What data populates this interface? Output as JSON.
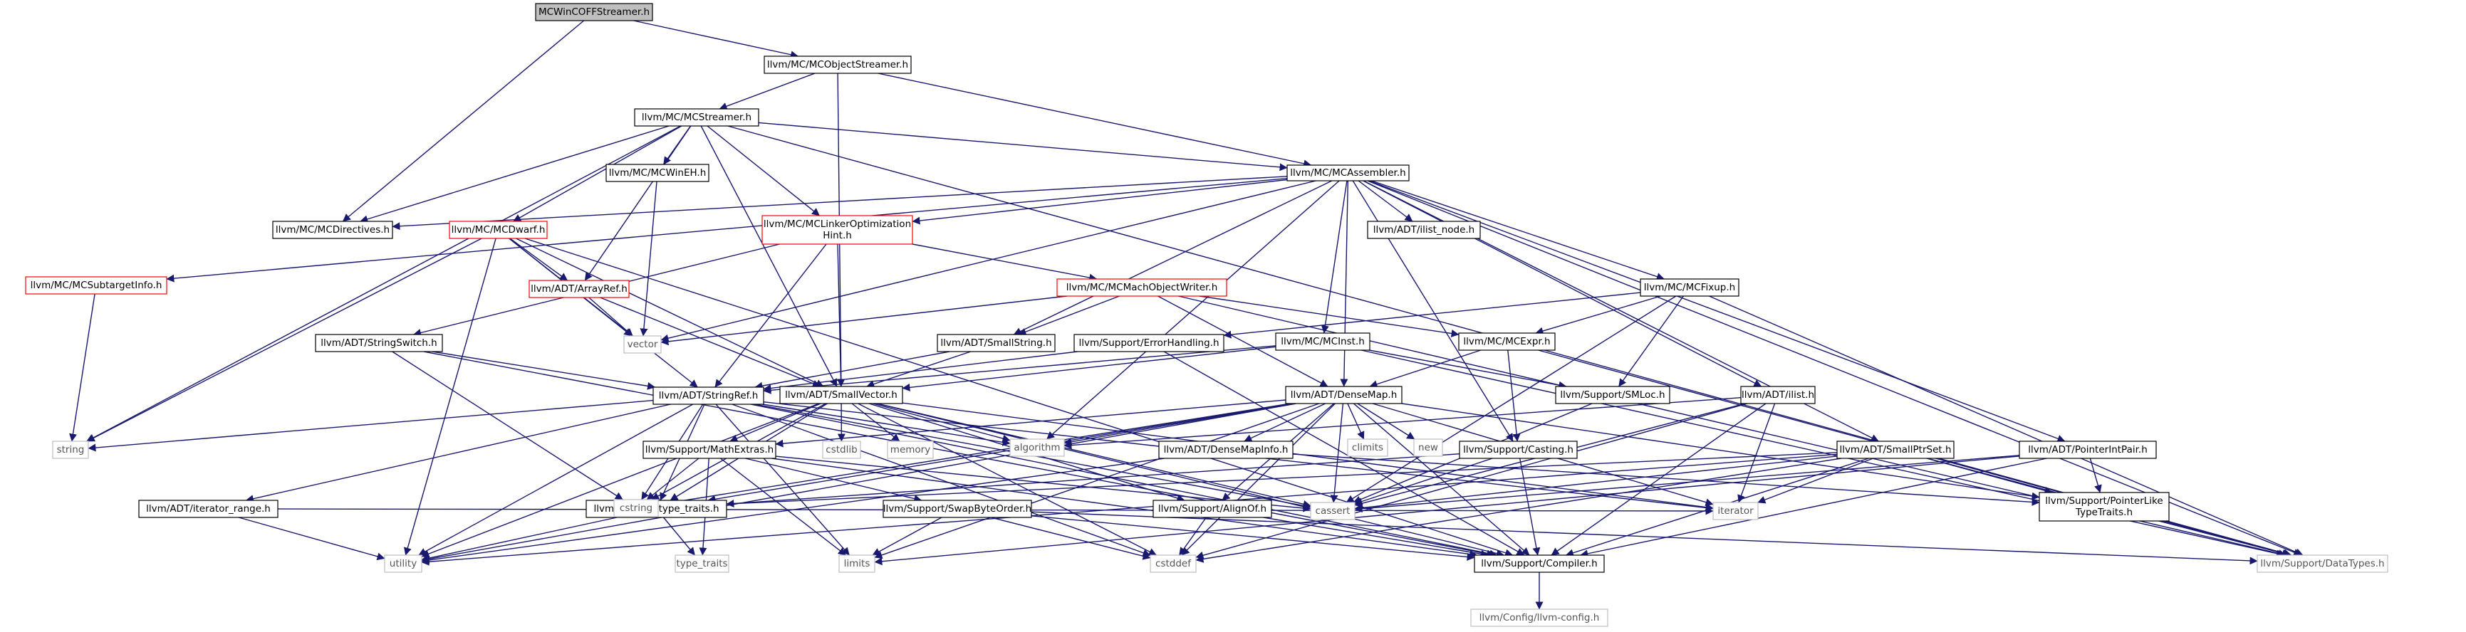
{
  "colors": {
    "edge": "#191970",
    "node_border": "#000000",
    "node_text": "#000000",
    "node_fill": "#ffffff",
    "root_fill": "#bfbfbf",
    "truncated_border": "#ff0000",
    "system_border": "#bfbfbf",
    "system_text": "#555555"
  },
  "nodes": [
    {
      "id": "root",
      "label": "MCWinCOFFStreamer.h",
      "kind": "root"
    },
    {
      "id": "mcobjectstreamer",
      "label": "llvm/MC/MCObjectStreamer.h",
      "kind": "normal"
    },
    {
      "id": "mcstreamer",
      "label": "llvm/MC/MCStreamer.h",
      "kind": "normal"
    },
    {
      "id": "mcassembler",
      "label": "llvm/MC/MCAssembler.h",
      "kind": "normal"
    },
    {
      "id": "mcwineh",
      "label": "llvm/MC/MCWinEH.h",
      "kind": "normal"
    },
    {
      "id": "mcdirectives",
      "label": "llvm/MC/MCDirectives.h",
      "kind": "normal"
    },
    {
      "id": "mcdwarf",
      "label": "llvm/MC/MCDwarf.h",
      "kind": "truncated"
    },
    {
      "id": "mclinker",
      "label": "llvm/MC/MCLinkerOptimization\nHint.h",
      "kind": "truncated"
    },
    {
      "id": "ilistnode",
      "label": "llvm/ADT/ilist_node.h",
      "kind": "normal"
    },
    {
      "id": "mcsubtarget",
      "label": "llvm/MC/MCSubtargetInfo.h",
      "kind": "truncated"
    },
    {
      "id": "arrayref",
      "label": "llvm/ADT/ArrayRef.h",
      "kind": "truncated"
    },
    {
      "id": "mcmacho",
      "label": "llvm/MC/MCMachObjectWriter.h",
      "kind": "truncated"
    },
    {
      "id": "mcfixup",
      "label": "llvm/MC/MCFixup.h",
      "kind": "normal"
    },
    {
      "id": "stringswitch",
      "label": "llvm/ADT/StringSwitch.h",
      "kind": "normal"
    },
    {
      "id": "smallstring",
      "label": "llvm/ADT/SmallString.h",
      "kind": "normal"
    },
    {
      "id": "errorhandling",
      "label": "llvm/Support/ErrorHandling.h",
      "kind": "normal"
    },
    {
      "id": "mcinst",
      "label": "llvm/MC/MCInst.h",
      "kind": "normal"
    },
    {
      "id": "mcexpr",
      "label": "llvm/MC/MCExpr.h",
      "kind": "normal"
    },
    {
      "id": "stringref",
      "label": "llvm/ADT/StringRef.h",
      "kind": "normal"
    },
    {
      "id": "smallvector",
      "label": "llvm/ADT/SmallVector.h",
      "kind": "normal"
    },
    {
      "id": "densemap",
      "label": "llvm/ADT/DenseMap.h",
      "kind": "normal"
    },
    {
      "id": "smloc",
      "label": "llvm/Support/SMLoc.h",
      "kind": "normal"
    },
    {
      "id": "ilist",
      "label": "llvm/ADT/ilist.h",
      "kind": "normal"
    },
    {
      "id": "mathextras",
      "label": "llvm/Support/MathExtras.h",
      "kind": "normal"
    },
    {
      "id": "densemapinfo",
      "label": "llvm/ADT/DenseMapInfo.h",
      "kind": "normal"
    },
    {
      "id": "casting",
      "label": "llvm/Support/Casting.h",
      "kind": "normal"
    },
    {
      "id": "smallptrset",
      "label": "llvm/ADT/SmallPtrSet.h",
      "kind": "normal"
    },
    {
      "id": "pointerintpair",
      "label": "llvm/ADT/PointerIntPair.h",
      "kind": "normal"
    },
    {
      "id": "iterrange",
      "label": "llvm/ADT/iterator_range.h",
      "kind": "normal"
    },
    {
      "id": "typetraitsh",
      "label": "llvm/Support/type_traits.h",
      "kind": "normal"
    },
    {
      "id": "swapbyte",
      "label": "llvm/Support/SwapByteOrder.h",
      "kind": "normal"
    },
    {
      "id": "alignof",
      "label": "llvm/Support/AlignOf.h",
      "kind": "normal"
    },
    {
      "id": "ptrlike",
      "label": "llvm/Support/PointerLike\nTypeTraits.h",
      "kind": "normal"
    },
    {
      "id": "compiler",
      "label": "llvm/Support/Compiler.h",
      "kind": "normal"
    },
    {
      "id": "datatypes",
      "label": "llvm/Support/DataTypes.h",
      "kind": "system"
    },
    {
      "id": "llvmconfig",
      "label": "llvm/Config/llvm-config.h",
      "kind": "system"
    },
    {
      "id": "vector",
      "label": "vector",
      "kind": "system"
    },
    {
      "id": "string",
      "label": "string",
      "kind": "system"
    },
    {
      "id": "cstdlib",
      "label": "cstdlib",
      "kind": "system"
    },
    {
      "id": "memory",
      "label": "memory",
      "kind": "system"
    },
    {
      "id": "algorithm",
      "label": "algorithm",
      "kind": "system"
    },
    {
      "id": "climits",
      "label": "climits",
      "kind": "system"
    },
    {
      "id": "new",
      "label": "new",
      "kind": "system"
    },
    {
      "id": "cstring",
      "label": "cstring",
      "kind": "system"
    },
    {
      "id": "cassert",
      "label": "cassert",
      "kind": "system"
    },
    {
      "id": "iterator",
      "label": "iterator",
      "kind": "system"
    },
    {
      "id": "utility",
      "label": "utility",
      "kind": "system"
    },
    {
      "id": "limits",
      "label": "limits",
      "kind": "system"
    },
    {
      "id": "typetraits",
      "label": "type_traits",
      "kind": "system"
    },
    {
      "id": "cstddef",
      "label": "cstddef",
      "kind": "system"
    }
  ],
  "edges": [
    [
      "root",
      "mcobjectstreamer"
    ],
    [
      "root",
      "mcdirectives"
    ],
    [
      "mcobjectstreamer",
      "mcstreamer"
    ],
    [
      "mcobjectstreamer",
      "mcassembler"
    ],
    [
      "mcobjectstreamer",
      "smallvector"
    ],
    [
      "mcstreamer",
      "mcassembler"
    ],
    [
      "mcstreamer",
      "mcwineh"
    ],
    [
      "mcstreamer",
      "mcdirectives"
    ],
    [
      "mcstreamer",
      "mcdwarf"
    ],
    [
      "mcstreamer",
      "mclinker"
    ],
    [
      "mcstreamer",
      "arrayref"
    ],
    [
      "mcstreamer",
      "smallvector"
    ],
    [
      "mcstreamer",
      "string"
    ],
    [
      "mcstreamer",
      "datatypes"
    ],
    [
      "mcassembler",
      "mcdirectives"
    ],
    [
      "mcassembler",
      "mclinker"
    ],
    [
      "mcassembler",
      "ilistnode"
    ],
    [
      "mcassembler",
      "mcsubtarget"
    ],
    [
      "mcassembler",
      "mcfixup"
    ],
    [
      "mcassembler",
      "smallstring"
    ],
    [
      "mcassembler",
      "mcinst"
    ],
    [
      "mcassembler",
      "densemap"
    ],
    [
      "mcassembler",
      "ilist"
    ],
    [
      "mcassembler",
      "casting"
    ],
    [
      "mcassembler",
      "smallptrset"
    ],
    [
      "mcassembler",
      "pointerintpair"
    ],
    [
      "mcassembler",
      "vector"
    ],
    [
      "mcassembler",
      "algorithm"
    ],
    [
      "mcassembler",
      "datatypes"
    ],
    [
      "mcwineh",
      "vector"
    ],
    [
      "mcdwarf",
      "arrayref"
    ],
    [
      "mcdwarf",
      "stringref"
    ],
    [
      "mcdwarf",
      "smallvector"
    ],
    [
      "mcdwarf",
      "vector"
    ],
    [
      "mcdwarf",
      "string"
    ],
    [
      "mcdwarf",
      "utility"
    ],
    [
      "mcdwarf",
      "compiler"
    ],
    [
      "mclinker",
      "stringswitch"
    ],
    [
      "mclinker",
      "mcmacho"
    ],
    [
      "mclinker",
      "stringref"
    ],
    [
      "mclinker",
      "smallvector"
    ],
    [
      "mcsubtarget",
      "string"
    ],
    [
      "arrayref",
      "smallvector"
    ],
    [
      "arrayref",
      "vector"
    ],
    [
      "mcmacho",
      "mcexpr"
    ],
    [
      "mcmacho",
      "densemap"
    ],
    [
      "mcmacho",
      "smallstring"
    ],
    [
      "mcmacho",
      "vector"
    ],
    [
      "mcmacho",
      "datatypes"
    ],
    [
      "mcfixup",
      "mcexpr"
    ],
    [
      "mcfixup",
      "errorhandling"
    ],
    [
      "mcfixup",
      "smloc"
    ],
    [
      "mcfixup",
      "cassert"
    ],
    [
      "mcfixup",
      "datatypes"
    ],
    [
      "stringswitch",
      "stringref"
    ],
    [
      "stringswitch",
      "compiler"
    ],
    [
      "stringswitch",
      "cstring"
    ],
    [
      "smallstring",
      "smallvector"
    ],
    [
      "smallstring",
      "stringref"
    ],
    [
      "errorhandling",
      "stringref"
    ],
    [
      "errorhandling",
      "compiler"
    ],
    [
      "mcinst",
      "smallvector"
    ],
    [
      "mcinst",
      "stringref"
    ],
    [
      "mcinst",
      "smloc"
    ],
    [
      "mcinst",
      "datatypes"
    ],
    [
      "mcexpr",
      "densemap"
    ],
    [
      "mcexpr",
      "casting"
    ],
    [
      "mcexpr",
      "datatypes"
    ],
    [
      "stringref",
      "string"
    ],
    [
      "stringref",
      "algorithm"
    ],
    [
      "stringref",
      "cstring"
    ],
    [
      "stringref",
      "limits"
    ],
    [
      "stringref",
      "utility"
    ],
    [
      "stringref",
      "iterrange"
    ],
    [
      "stringref",
      "typetraitsh"
    ],
    [
      "stringref",
      "cassert"
    ],
    [
      "stringref",
      "cstddef"
    ],
    [
      "stringref",
      "compiler"
    ],
    [
      "stringref",
      "iterator"
    ],
    [
      "smallvector",
      "mathextras"
    ],
    [
      "smallvector",
      "alignof"
    ],
    [
      "smallvector",
      "typetraitsh"
    ],
    [
      "smallvector",
      "algorithm"
    ],
    [
      "smallvector",
      "cstdlib"
    ],
    [
      "smallvector",
      "memory"
    ],
    [
      "smallvector",
      "cassert"
    ],
    [
      "smallvector",
      "cstddef"
    ],
    [
      "smallvector",
      "compiler"
    ],
    [
      "smallvector",
      "iterator"
    ],
    [
      "smallvector",
      "utility"
    ],
    [
      "smallvector",
      "cstring"
    ],
    [
      "densemap",
      "densemapinfo"
    ],
    [
      "densemap",
      "mathextras"
    ],
    [
      "densemap",
      "alignof"
    ],
    [
      "densemap",
      "typetraitsh"
    ],
    [
      "densemap",
      "ptrlike"
    ],
    [
      "densemap",
      "compiler"
    ],
    [
      "densemap",
      "algorithm"
    ],
    [
      "densemap",
      "cassert"
    ],
    [
      "densemap",
      "climits"
    ],
    [
      "densemap",
      "new"
    ],
    [
      "densemap",
      "iterator"
    ],
    [
      "densemap",
      "utility"
    ],
    [
      "densemap",
      "cstring"
    ],
    [
      "densemap",
      "limits"
    ],
    [
      "densemap",
      "cstddef"
    ],
    [
      "smloc",
      "cassert"
    ],
    [
      "ilist",
      "compiler"
    ],
    [
      "ilist",
      "cassert"
    ],
    [
      "ilist",
      "cstddef"
    ],
    [
      "ilist",
      "iterator"
    ],
    [
      "ilist",
      "algorithm"
    ],
    [
      "mathextras",
      "compiler"
    ],
    [
      "mathextras",
      "swapbyte"
    ],
    [
      "mathextras",
      "cstring"
    ],
    [
      "mathextras",
      "typetraits"
    ],
    [
      "mathextras",
      "limits"
    ],
    [
      "mathextras",
      "cassert"
    ],
    [
      "densemapinfo",
      "ptrlike"
    ],
    [
      "densemapinfo",
      "utility"
    ],
    [
      "casting",
      "compiler"
    ],
    [
      "casting",
      "typetraitsh"
    ],
    [
      "casting",
      "cassert"
    ],
    [
      "smallptrset",
      "compiler"
    ],
    [
      "smallptrset",
      "datatypes"
    ],
    [
      "smallptrset",
      "ptrlike"
    ],
    [
      "smallptrset",
      "cassert"
    ],
    [
      "smallptrset",
      "cstddef"
    ],
    [
      "smallptrset",
      "cstring"
    ],
    [
      "smallptrset",
      "iterator"
    ],
    [
      "smallptrset",
      "utility"
    ],
    [
      "pointerintpair",
      "compiler"
    ],
    [
      "pointerintpair",
      "ptrlike"
    ],
    [
      "pointerintpair",
      "cassert"
    ],
    [
      "pointerintpair",
      "limits"
    ],
    [
      "iterrange",
      "utility"
    ],
    [
      "iterrange",
      "iterator"
    ],
    [
      "typetraitsh",
      "utility"
    ],
    [
      "typetraitsh",
      "typetraits"
    ],
    [
      "swapbyte",
      "compiler"
    ],
    [
      "swapbyte",
      "datatypes"
    ],
    [
      "swapbyte",
      "cstddef"
    ],
    [
      "swapbyte",
      "limits"
    ],
    [
      "alignof",
      "compiler"
    ],
    [
      "alignof",
      "cstddef"
    ],
    [
      "ptrlike",
      "datatypes"
    ],
    [
      "compiler",
      "llvmconfig"
    ]
  ]
}
